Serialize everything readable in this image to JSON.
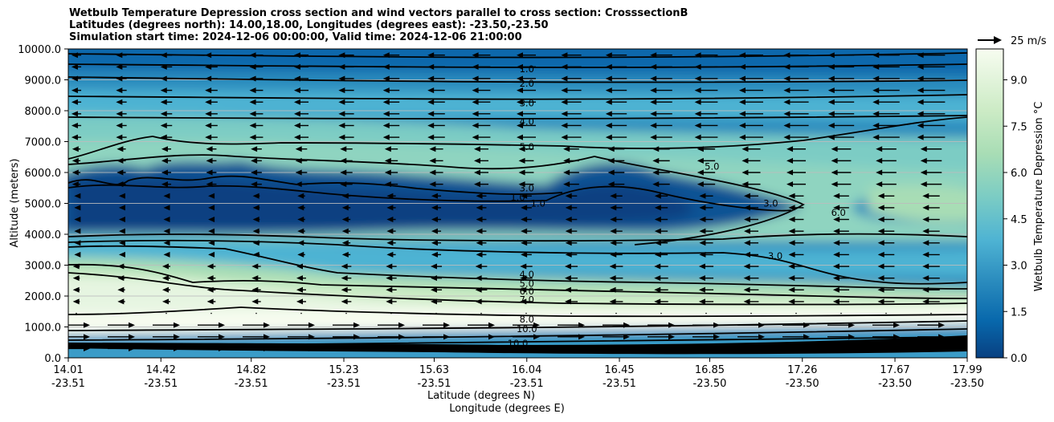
{
  "chart_data": {
    "type": "heatmap",
    "title_lines": [
      "Wetbulb Temperature Depression cross section and wind vectors parallel to cross section: CrosssectionB",
      "Latitudes (degrees north): 14.00,18.00, Longitudes (degrees east): -23.50,-23.50",
      "Simulation start time: 2024-12-06 00:00:00, Valid time: 2024-12-06 21:00:00"
    ],
    "ylabel": "Altitude (meters)",
    "xlabel_lat": "Latitude (degrees N)",
    "xlabel_lon": "Longitude (degrees E)",
    "ylim": [
      0,
      10000
    ],
    "y_ticks": [
      "0.0",
      "1000.0",
      "2000.0",
      "3000.0",
      "4000.0",
      "5000.0",
      "6000.0",
      "7000.0",
      "8000.0",
      "9000.0",
      "10000.0"
    ],
    "x_ticks": [
      {
        "lat": "14.01",
        "lon": "-23.51"
      },
      {
        "lat": "14.42",
        "lon": "-23.51"
      },
      {
        "lat": "14.82",
        "lon": "-23.51"
      },
      {
        "lat": "15.23",
        "lon": "-23.51"
      },
      {
        "lat": "15.63",
        "lon": "-23.51"
      },
      {
        "lat": "16.04",
        "lon": "-23.51"
      },
      {
        "lat": "16.45",
        "lon": "-23.51"
      },
      {
        "lat": "16.85",
        "lon": "-23.50"
      },
      {
        "lat": "17.26",
        "lon": "-23.50"
      },
      {
        "lat": "17.67",
        "lon": "-23.50"
      },
      {
        "lat": "17.99",
        "lon": "-23.50"
      }
    ],
    "colorbar": {
      "label": "Wetbulb Temperature Depression °C",
      "range": [
        0,
        10
      ],
      "ticks": [
        "0.0",
        "1.5",
        "3.0",
        "4.5",
        "6.0",
        "7.5",
        "9.0"
      ],
      "colors": [
        "#084081",
        "#0b5394",
        "#0868ac",
        "#1f7fb8",
        "#2b8cbe",
        "#3a9cc8",
        "#4eb3d3",
        "#62bdd0",
        "#7bccc4",
        "#8fd4c0",
        "#a8ddb5",
        "#bde5be",
        "#ccebc5",
        "#dcf1d6",
        "#e6f5e1",
        "#f7fcf0"
      ]
    },
    "quiver_key": "25 m/s",
    "contour_levels": [
      "1.0",
      "2.0",
      "3.0",
      "4.0",
      "5.0",
      "6.0",
      "7.0",
      "8.0",
      "9.0",
      "10.0"
    ],
    "contour_labels": [
      {
        "text": "1.0",
        "lat": 16.04,
        "alt": 9350
      },
      {
        "text": "2.0",
        "lat": 16.04,
        "alt": 8880
      },
      {
        "text": "3.0",
        "lat": 16.04,
        "alt": 8250
      },
      {
        "text": "4.0",
        "lat": 16.04,
        "alt": 7650
      },
      {
        "text": "5.0",
        "lat": 16.04,
        "alt": 6830
      },
      {
        "text": "3.0",
        "lat": 16.04,
        "alt": 5500
      },
      {
        "text": "1.0",
        "lat": 16.0,
        "alt": 5200
      },
      {
        "text": "1.0",
        "lat": 16.09,
        "alt": 5000
      },
      {
        "text": "3.0",
        "lat": 17.12,
        "alt": 5000
      },
      {
        "text": "5.0",
        "lat": 16.86,
        "alt": 6200
      },
      {
        "text": "6.0",
        "lat": 17.42,
        "alt": 4700
      },
      {
        "text": "3.0",
        "lat": 17.14,
        "alt": 3300
      },
      {
        "text": "4.0",
        "lat": 16.04,
        "alt": 2700
      },
      {
        "text": "5.0",
        "lat": 16.04,
        "alt": 2400
      },
      {
        "text": "6.0",
        "lat": 16.04,
        "alt": 2150
      },
      {
        "text": "7.0",
        "lat": 16.04,
        "alt": 1880
      },
      {
        "text": "8.0",
        "lat": 16.04,
        "alt": 1250
      },
      {
        "text": "10.0",
        "lat": 16.04,
        "alt": 940
      },
      {
        "text": "10.0",
        "lat": 16.0,
        "alt": 470
      }
    ],
    "wind": "westward (leftward) above ~1500 m, eastward (rightward) near surface, weak in 3000-5000 m layer"
  }
}
